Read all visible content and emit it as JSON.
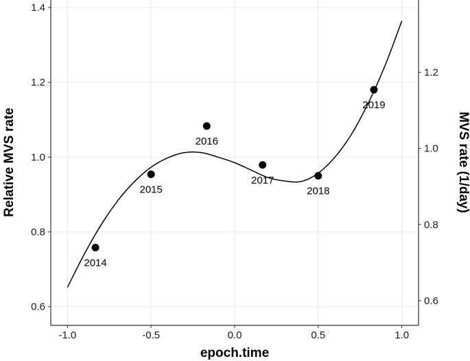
{
  "chart_data": {
    "type": "scatter",
    "xlabel": "epoch.time",
    "ylabel": "Relative MVS rate",
    "y2label": "MVS rate (1/day)",
    "xlim": [
      -1.1,
      1.1
    ],
    "ylim": [
      0.55,
      1.42
    ],
    "y2lim": [
      0.535,
      1.39
    ],
    "xticks": [
      -1.0,
      -0.5,
      0.0,
      0.5,
      1.0
    ],
    "xtick_labels": [
      "-1.0",
      "-0.5",
      "0.0",
      "0.5",
      "1.0"
    ],
    "yticks": [
      0.6,
      0.8,
      1.0,
      1.2,
      1.4
    ],
    "ytick_labels": [
      "0.6",
      "0.8",
      "1.0",
      "1.2",
      "1.4"
    ],
    "y2ticks": [
      0.6,
      0.8,
      1.0,
      1.2
    ],
    "y2tick_labels": [
      "0.6",
      "0.8",
      "1.0",
      "1.2"
    ],
    "grid": true,
    "points": [
      {
        "x": -0.833,
        "y": 0.758,
        "label": "2014"
      },
      {
        "x": -0.5,
        "y": 0.954,
        "label": "2015"
      },
      {
        "x": -0.167,
        "y": 1.083,
        "label": "2016"
      },
      {
        "x": 0.167,
        "y": 0.979,
        "label": "2017"
      },
      {
        "x": 0.5,
        "y": 0.95,
        "label": "2018"
      },
      {
        "x": 0.833,
        "y": 1.18,
        "label": "2019"
      }
    ],
    "fit_curve": {
      "x": [
        -1.0,
        -0.9,
        -0.8,
        -0.7,
        -0.6,
        -0.5,
        -0.4,
        -0.3,
        -0.2,
        -0.1,
        0.0,
        0.1,
        0.2,
        0.3,
        0.4,
        0.5,
        0.6,
        0.7,
        0.8,
        0.9,
        1.0
      ],
      "y": [
        0.652,
        0.74,
        0.818,
        0.883,
        0.934,
        0.973,
        0.998,
        1.012,
        1.012,
        1.0,
        0.985,
        0.965,
        0.945,
        0.936,
        0.935,
        0.957,
        1.0,
        1.062,
        1.145,
        1.245,
        1.364
      ]
    }
  }
}
